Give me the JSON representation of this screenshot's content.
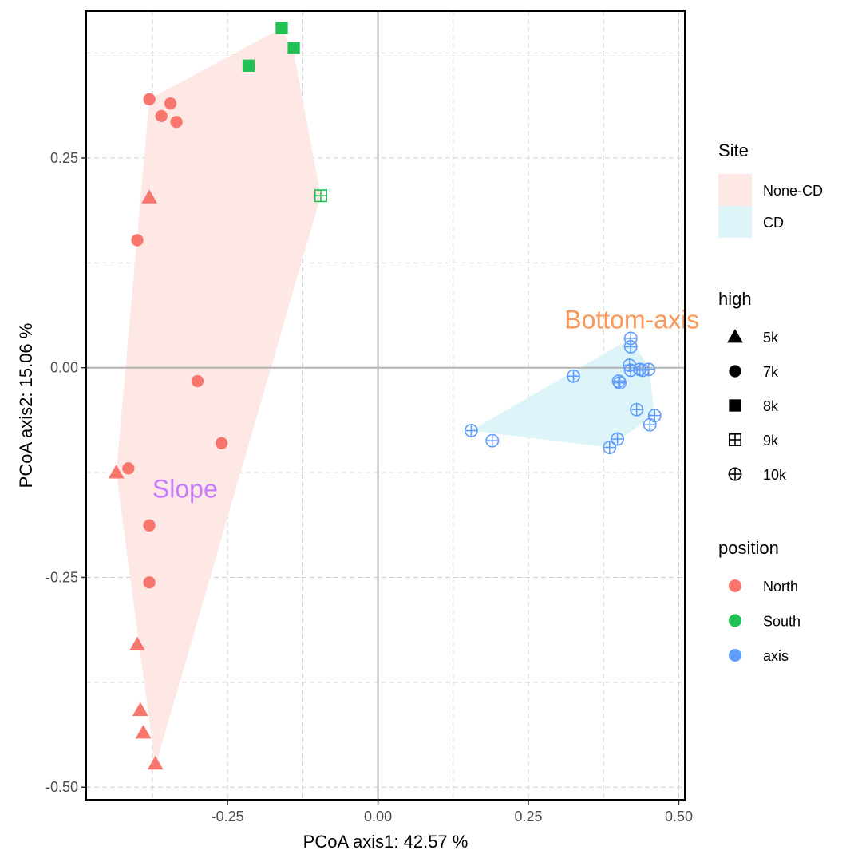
{
  "chart_data": {
    "type": "scatter",
    "xlabel": "PCoA axis1:  42.57 %",
    "ylabel": "PCoA axis2:  15.06 %",
    "xlim": [
      -0.485,
      0.51
    ],
    "ylim": [
      -0.515,
      0.425
    ],
    "x_ticks": [
      -0.25,
      0.0,
      0.25,
      0.5
    ],
    "x_tick_labels": [
      "-0.25",
      "0.00",
      "0.25",
      "0.50"
    ],
    "y_ticks": [
      -0.5,
      -0.25,
      0.0,
      0.25
    ],
    "y_tick_labels": [
      "-0.50",
      "-0.25",
      "0.00",
      "0.25"
    ],
    "grid": true,
    "zero_lines": true,
    "colors": {
      "North": "#F8766D",
      "South": "#22C155",
      "axis": "#619CFF",
      "None-CD": "#FDE8E6",
      "CD": "#DDF4F8"
    },
    "hulls": [
      {
        "site": "None-CD",
        "vertices": [
          [
            -0.435,
            -0.125
          ],
          [
            -0.37,
            -0.475
          ],
          [
            -0.095,
            0.205
          ],
          [
            -0.14,
            0.375
          ],
          [
            -0.16,
            0.405
          ],
          [
            -0.38,
            0.32
          ]
        ]
      },
      {
        "site": "CD",
        "vertices": [
          [
            0.155,
            -0.075
          ],
          [
            0.385,
            -0.095
          ],
          [
            0.46,
            -0.055
          ],
          [
            0.45,
            0.0
          ],
          [
            0.42,
            0.035
          ]
        ]
      }
    ],
    "points": [
      {
        "x": -0.38,
        "y": 0.32,
        "shape": "7k",
        "position": "North"
      },
      {
        "x": -0.345,
        "y": 0.315,
        "shape": "7k",
        "position": "North"
      },
      {
        "x": -0.36,
        "y": 0.3,
        "shape": "7k",
        "position": "North"
      },
      {
        "x": -0.335,
        "y": 0.293,
        "shape": "7k",
        "position": "North"
      },
      {
        "x": -0.38,
        "y": 0.203,
        "shape": "5k",
        "position": "North"
      },
      {
        "x": -0.4,
        "y": 0.152,
        "shape": "7k",
        "position": "North"
      },
      {
        "x": -0.3,
        "y": -0.016,
        "shape": "7k",
        "position": "North"
      },
      {
        "x": -0.26,
        "y": -0.09,
        "shape": "7k",
        "position": "North"
      },
      {
        "x": -0.435,
        "y": -0.125,
        "shape": "5k",
        "position": "North"
      },
      {
        "x": -0.415,
        "y": -0.12,
        "shape": "7k",
        "position": "North"
      },
      {
        "x": -0.38,
        "y": -0.188,
        "shape": "7k",
        "position": "North"
      },
      {
        "x": -0.38,
        "y": -0.256,
        "shape": "7k",
        "position": "North"
      },
      {
        "x": -0.4,
        "y": -0.33,
        "shape": "5k",
        "position": "North"
      },
      {
        "x": -0.395,
        "y": -0.408,
        "shape": "5k",
        "position": "North"
      },
      {
        "x": -0.39,
        "y": -0.435,
        "shape": "5k",
        "position": "North"
      },
      {
        "x": -0.37,
        "y": -0.472,
        "shape": "5k",
        "position": "North"
      },
      {
        "x": -0.16,
        "y": 0.405,
        "shape": "8k",
        "position": "South"
      },
      {
        "x": -0.14,
        "y": 0.381,
        "shape": "8k",
        "position": "South"
      },
      {
        "x": -0.215,
        "y": 0.36,
        "shape": "8k",
        "position": "South"
      },
      {
        "x": -0.095,
        "y": 0.205,
        "shape": "9k",
        "position": "South"
      },
      {
        "x": 0.155,
        "y": -0.075,
        "shape": "10k",
        "position": "axis"
      },
      {
        "x": 0.19,
        "y": -0.087,
        "shape": "10k",
        "position": "axis"
      },
      {
        "x": 0.325,
        "y": -0.01,
        "shape": "10k",
        "position": "axis"
      },
      {
        "x": 0.4,
        "y": -0.016,
        "shape": "10k",
        "position": "axis"
      },
      {
        "x": 0.402,
        "y": -0.018,
        "shape": "10k",
        "position": "axis"
      },
      {
        "x": 0.42,
        "y": 0.035,
        "shape": "10k",
        "position": "axis"
      },
      {
        "x": 0.42,
        "y": 0.025,
        "shape": "10k",
        "position": "axis"
      },
      {
        "x": 0.418,
        "y": 0.003,
        "shape": "10k",
        "position": "axis"
      },
      {
        "x": 0.42,
        "y": -0.003,
        "shape": "10k",
        "position": "axis"
      },
      {
        "x": 0.435,
        "y": -0.002,
        "shape": "10k",
        "position": "axis"
      },
      {
        "x": 0.44,
        "y": -0.003,
        "shape": "10k",
        "position": "axis"
      },
      {
        "x": 0.45,
        "y": -0.002,
        "shape": "10k",
        "position": "axis"
      },
      {
        "x": 0.43,
        "y": -0.05,
        "shape": "10k",
        "position": "axis"
      },
      {
        "x": 0.46,
        "y": -0.057,
        "shape": "10k",
        "position": "axis"
      },
      {
        "x": 0.452,
        "y": -0.068,
        "shape": "10k",
        "position": "axis"
      },
      {
        "x": 0.398,
        "y": -0.085,
        "shape": "10k",
        "position": "axis"
      },
      {
        "x": 0.385,
        "y": -0.095,
        "shape": "10k",
        "position": "axis"
      }
    ],
    "annotations": [
      {
        "text": "Slope",
        "x": -0.375,
        "y": -0.155,
        "color": "#C77CFF",
        "anchor": "start"
      },
      {
        "text": "Bottom-axis",
        "x": 0.31,
        "y": 0.047,
        "color": "#F8995A",
        "anchor": "start"
      }
    ],
    "legends": [
      {
        "title": "Site",
        "kind": "fill",
        "items": [
          {
            "label": "None-CD",
            "key": "None-CD"
          },
          {
            "label": "CD",
            "key": "CD"
          }
        ]
      },
      {
        "title": "high",
        "kind": "shape",
        "items": [
          {
            "label": "5k",
            "key": "5k"
          },
          {
            "label": "7k",
            "key": "7k"
          },
          {
            "label": "8k",
            "key": "8k"
          },
          {
            "label": "9k",
            "key": "9k"
          },
          {
            "label": "10k",
            "key": "10k"
          }
        ]
      },
      {
        "title": "position",
        "kind": "color",
        "items": [
          {
            "label": "North",
            "key": "North"
          },
          {
            "label": "South",
            "key": "South"
          },
          {
            "label": "axis",
            "key": "axis"
          }
        ]
      }
    ]
  }
}
